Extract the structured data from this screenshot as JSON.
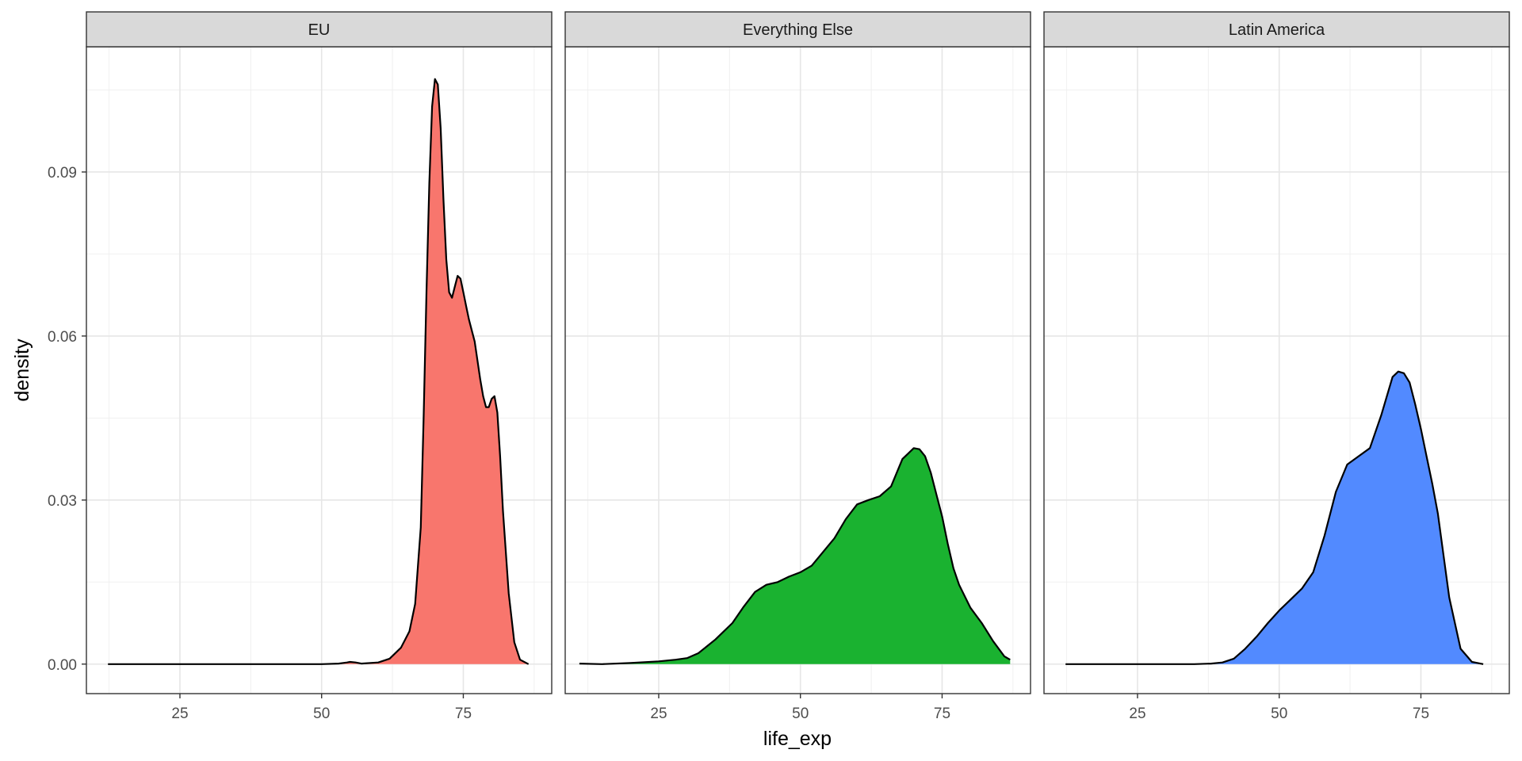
{
  "chart_data": {
    "type": "area",
    "xlabel": "life_exp",
    "ylabel": "density",
    "xlim": [
      8.5,
      90.6
    ],
    "ylim": [
      -0.0054,
      0.1129
    ],
    "x_ticks": [
      25,
      50,
      75
    ],
    "x_tick_labels": [
      "25",
      "50",
      "75"
    ],
    "y_ticks": [
      0.0,
      0.03,
      0.06,
      0.09
    ],
    "y_tick_labels": [
      "0.00",
      "0.03",
      "0.06",
      "0.09"
    ],
    "grid": true,
    "legend": "none",
    "facets": [
      {
        "name": "EU",
        "fill": "#F8766D",
        "x": [
          12.3,
          30,
          50,
          53,
          54.5,
          55,
          56,
          57,
          60,
          62,
          64,
          65.5,
          66.5,
          67.5,
          68,
          68.5,
          69,
          69.5,
          70,
          70.5,
          71,
          71.5,
          72,
          72.5,
          73,
          73.5,
          74,
          74.5,
          75,
          75.5,
          76,
          77,
          78,
          78.5,
          79,
          79.5,
          80,
          80.5,
          81,
          81.5,
          82,
          83,
          84,
          85,
          86.5
        ],
        "y": [
          0,
          0,
          0,
          0.0001,
          0.0003,
          0.0004,
          0.0003,
          0.0001,
          0.0003,
          0.001,
          0.003,
          0.006,
          0.011,
          0.025,
          0.045,
          0.068,
          0.088,
          0.102,
          0.107,
          0.106,
          0.098,
          0.085,
          0.074,
          0.068,
          0.067,
          0.069,
          0.071,
          0.0705,
          0.068,
          0.0655,
          0.063,
          0.059,
          0.052,
          0.049,
          0.047,
          0.047,
          0.0485,
          0.049,
          0.046,
          0.038,
          0.028,
          0.013,
          0.004,
          0.0008,
          0
        ]
      },
      {
        "name": "Everything Else",
        "fill": "#1AB230",
        "x": [
          11,
          15,
          20,
          25,
          28,
          30,
          32,
          35,
          38,
          40,
          42,
          44,
          46,
          48,
          50,
          52,
          54,
          56,
          58,
          60,
          62,
          64,
          66,
          68,
          70,
          71,
          72,
          73,
          74,
          75,
          76,
          77,
          78,
          80,
          82,
          84,
          86,
          87
        ],
        "y": [
          0.0001,
          0,
          0.0002,
          0.0005,
          0.0008,
          0.0011,
          0.002,
          0.0045,
          0.0075,
          0.0105,
          0.0132,
          0.0145,
          0.015,
          0.016,
          0.0168,
          0.018,
          0.0205,
          0.023,
          0.0265,
          0.0292,
          0.03,
          0.0307,
          0.0325,
          0.0375,
          0.0395,
          0.0393,
          0.038,
          0.035,
          0.031,
          0.027,
          0.022,
          0.0175,
          0.0145,
          0.0103,
          0.0075,
          0.0042,
          0.0014,
          0.0008
        ]
      },
      {
        "name": "Latin America",
        "fill": "#528AFF",
        "x": [
          12.3,
          25,
          35,
          38,
          40,
          42,
          44,
          46,
          48,
          50,
          52,
          54,
          56,
          58,
          60,
          62,
          64,
          66,
          68,
          70,
          71,
          72,
          73,
          74,
          75,
          76,
          77,
          78,
          80,
          82,
          84,
          86
        ],
        "y": [
          0,
          0,
          0,
          0.0001,
          0.0003,
          0.001,
          0.0028,
          0.005,
          0.0075,
          0.0098,
          0.0118,
          0.0138,
          0.0168,
          0.0235,
          0.0315,
          0.0365,
          0.038,
          0.0395,
          0.0455,
          0.0525,
          0.0535,
          0.0532,
          0.0515,
          0.0475,
          0.043,
          0.038,
          0.033,
          0.0275,
          0.0122,
          0.0028,
          0.0004,
          0
        ]
      }
    ]
  }
}
